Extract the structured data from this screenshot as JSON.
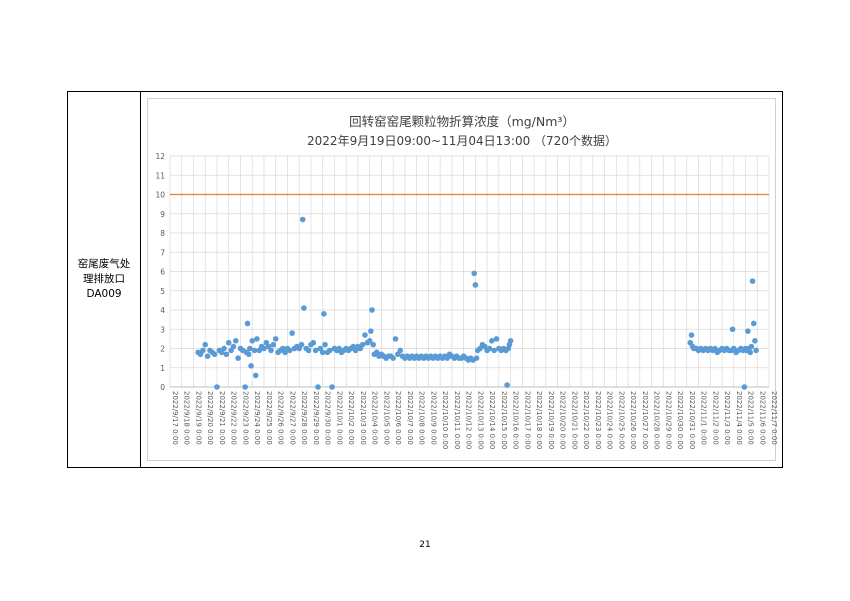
{
  "table": {
    "label_line1": "窑尾废气处",
    "label_line2": "理排放口",
    "label_line3": "DA009"
  },
  "page": {
    "number": "21"
  },
  "colors": {
    "points": "#5b9bd5",
    "limit_line": "#ed7d31",
    "grid": "#d9d9d9",
    "axis_text": "#595959"
  },
  "chart_data": {
    "type": "scatter",
    "title": "回转窑窑尾颗粒物折算浓度（mg/Nm³）",
    "subtitle": "2022年9月19日09:00~11月04日13:00 （720个数据）",
    "xlabel": "",
    "ylabel": "",
    "ylim": [
      0,
      12
    ],
    "xlim": [
      "2022/9/17 0:00",
      "2022/11/7 0:00"
    ],
    "yticks": [
      "0",
      "1",
      "2",
      "3",
      "4",
      "5",
      "6",
      "7",
      "8",
      "9",
      "10",
      "11",
      "12"
    ],
    "xticks": [
      "2022/9/17 0:00",
      "2022/9/18 0:00",
      "2022/9/19 0:00",
      "2022/9/20 0:00",
      "2022/9/21 0:00",
      "2022/9/22 0:00",
      "2022/9/23 0:00",
      "2022/9/24 0:00",
      "2022/9/25 0:00",
      "2022/9/26 0:00",
      "2022/9/27 0:00",
      "2022/9/28 0:00",
      "2022/9/29 0:00",
      "2022/9/30 0:00",
      "2022/10/1 0:00",
      "2022/10/2 0:00",
      "2022/10/3 0:00",
      "2022/10/4 0:00",
      "2022/10/5 0:00",
      "2022/10/6 0:00",
      "2022/10/7 0:00",
      "2022/10/8 0:00",
      "2022/10/9 0:00",
      "2022/10/10 0:00",
      "2022/10/11 0:00",
      "2022/10/12 0:00",
      "2022/10/13 0:00",
      "2022/10/14 0:00",
      "2022/10/15 0:00",
      "2022/10/16 0:00",
      "2022/10/17 0:00",
      "2022/10/18 0:00",
      "2022/10/19 0:00",
      "2022/10/20 0:00",
      "2022/10/21 0:00",
      "2022/10/22 0:00",
      "2022/10/23 0:00",
      "2022/10/24 0:00",
      "2022/10/25 0:00",
      "2022/10/26 0:00",
      "2022/10/27 0:00",
      "2022/10/28 0:00",
      "2022/10/29 0:00",
      "2022/10/30 0:00",
      "2022/10/31 0:00",
      "2022/11/1 0:00",
      "2022/11/2 0:00",
      "2022/11/3 0:00",
      "2022/11/4 0:00",
      "2022/11/5 0:00",
      "2022/11/6 0:00",
      "2022/11/7 0:00"
    ],
    "grid": true,
    "legend": "none",
    "series": [
      {
        "type": "line",
        "values": [
          [
            0,
            10
          ],
          [
            51,
            10
          ]
        ]
      },
      {
        "type": "scatter",
        "values": [
          [
            2.4,
            1.8
          ],
          [
            2.6,
            1.7
          ],
          [
            2.8,
            1.9
          ],
          [
            3.0,
            2.2
          ],
          [
            3.2,
            1.6
          ],
          [
            3.4,
            1.9
          ],
          [
            3.6,
            1.8
          ],
          [
            3.8,
            1.7
          ],
          [
            4.0,
            0
          ],
          [
            4.2,
            1.9
          ],
          [
            4.4,
            1.8
          ],
          [
            4.6,
            2.0
          ],
          [
            4.8,
            1.7
          ],
          [
            5.0,
            2.3
          ],
          [
            5.2,
            1.9
          ],
          [
            5.4,
            2.1
          ],
          [
            5.6,
            2.4
          ],
          [
            5.8,
            1.5
          ],
          [
            6.0,
            2.0
          ],
          [
            6.2,
            1.9
          ],
          [
            6.4,
            0
          ],
          [
            6.5,
            1.8
          ],
          [
            6.6,
            3.3
          ],
          [
            6.7,
            1.7
          ],
          [
            6.8,
            2.0
          ],
          [
            6.9,
            1.1
          ],
          [
            7.0,
            2.4
          ],
          [
            7.2,
            1.9
          ],
          [
            7.3,
            0.6
          ],
          [
            7.4,
            2.5
          ],
          [
            7.6,
            1.9
          ],
          [
            7.8,
            2.1
          ],
          [
            8.0,
            2.0
          ],
          [
            8.2,
            2.3
          ],
          [
            8.4,
            2.1
          ],
          [
            8.6,
            1.9
          ],
          [
            8.8,
            2.2
          ],
          [
            9.0,
            2.5
          ],
          [
            9.2,
            1.8
          ],
          [
            9.4,
            1.9
          ],
          [
            9.6,
            2.0
          ],
          [
            9.8,
            1.8
          ],
          [
            10.0,
            2.0
          ],
          [
            10.2,
            1.9
          ],
          [
            10.4,
            2.8
          ],
          [
            10.6,
            2.0
          ],
          [
            10.8,
            2.1
          ],
          [
            11.0,
            2.0
          ],
          [
            11.2,
            2.2
          ],
          [
            11.3,
            8.7
          ],
          [
            11.4,
            4.1
          ],
          [
            11.6,
            2.0
          ],
          [
            11.8,
            1.9
          ],
          [
            12.0,
            2.2
          ],
          [
            12.2,
            2.3
          ],
          [
            12.4,
            1.9
          ],
          [
            12.6,
            0
          ],
          [
            12.8,
            2.0
          ],
          [
            13.0,
            1.8
          ],
          [
            13.1,
            3.8
          ],
          [
            13.2,
            2.2
          ],
          [
            13.4,
            1.8
          ],
          [
            13.6,
            1.9
          ],
          [
            13.8,
            0
          ],
          [
            14.0,
            2.0
          ],
          [
            14.2,
            1.9
          ],
          [
            14.4,
            2.0
          ],
          [
            14.6,
            1.8
          ],
          [
            14.8,
            1.9
          ],
          [
            15.0,
            2.0
          ],
          [
            15.2,
            1.9
          ],
          [
            15.4,
            2.0
          ],
          [
            15.6,
            2.1
          ],
          [
            15.8,
            1.9
          ],
          [
            16.0,
            2.1
          ],
          [
            16.2,
            2.0
          ],
          [
            16.4,
            2.2
          ],
          [
            16.6,
            2.7
          ],
          [
            16.8,
            2.3
          ],
          [
            17.0,
            2.4
          ],
          [
            17.1,
            2.9
          ],
          [
            17.2,
            4.0
          ],
          [
            17.3,
            2.2
          ],
          [
            17.4,
            1.7
          ],
          [
            17.6,
            1.8
          ],
          [
            17.8,
            1.6
          ],
          [
            18.0,
            1.7
          ],
          [
            18.2,
            1.6
          ],
          [
            18.4,
            1.5
          ],
          [
            18.6,
            1.6
          ],
          [
            18.8,
            1.6
          ],
          [
            19.0,
            1.5
          ],
          [
            19.2,
            2.5
          ],
          [
            19.4,
            1.7
          ],
          [
            19.6,
            1.9
          ],
          [
            19.8,
            1.6
          ],
          [
            20.0,
            1.5
          ],
          [
            20.2,
            1.6
          ],
          [
            20.4,
            1.5
          ],
          [
            20.6,
            1.6
          ],
          [
            20.8,
            1.5
          ],
          [
            21.0,
            1.6
          ],
          [
            21.2,
            1.5
          ],
          [
            21.4,
            1.6
          ],
          [
            21.6,
            1.5
          ],
          [
            21.8,
            1.6
          ],
          [
            22.0,
            1.5
          ],
          [
            22.2,
            1.6
          ],
          [
            22.4,
            1.5
          ],
          [
            22.6,
            1.6
          ],
          [
            22.8,
            1.5
          ],
          [
            23.0,
            1.6
          ],
          [
            23.2,
            1.5
          ],
          [
            23.4,
            1.6
          ],
          [
            23.6,
            1.5
          ],
          [
            23.8,
            1.7
          ],
          [
            24.0,
            1.6
          ],
          [
            24.2,
            1.5
          ],
          [
            24.4,
            1.6
          ],
          [
            24.6,
            1.5
          ],
          [
            24.8,
            1.5
          ],
          [
            25.0,
            1.6
          ],
          [
            25.2,
            1.5
          ],
          [
            25.4,
            1.4
          ],
          [
            25.6,
            1.5
          ],
          [
            25.8,
            1.4
          ],
          [
            25.9,
            5.9
          ],
          [
            26.0,
            5.3
          ],
          [
            26.1,
            1.5
          ],
          [
            26.2,
            1.9
          ],
          [
            26.4,
            2.0
          ],
          [
            26.6,
            2.2
          ],
          [
            26.8,
            2.1
          ],
          [
            27.0,
            1.9
          ],
          [
            27.2,
            2.0
          ],
          [
            27.4,
            2.4
          ],
          [
            27.6,
            1.9
          ],
          [
            27.8,
            2.5
          ],
          [
            28.0,
            2.0
          ],
          [
            28.2,
            1.9
          ],
          [
            28.4,
            2.0
          ],
          [
            28.6,
            1.9
          ],
          [
            28.7,
            0.1
          ],
          [
            28.8,
            2.0
          ],
          [
            28.9,
            2.2
          ],
          [
            29.0,
            2.4
          ],
          [
            44.3,
            2.3
          ],
          [
            44.4,
            2.7
          ],
          [
            44.5,
            2.1
          ],
          [
            44.6,
            2.0
          ],
          [
            44.8,
            2.0
          ],
          [
            45.0,
            1.9
          ],
          [
            45.2,
            2.0
          ],
          [
            45.4,
            1.9
          ],
          [
            45.6,
            2.0
          ],
          [
            45.8,
            1.9
          ],
          [
            46.0,
            2.0
          ],
          [
            46.2,
            1.9
          ],
          [
            46.4,
            2.0
          ],
          [
            46.6,
            1.8
          ],
          [
            46.8,
            1.9
          ],
          [
            47.0,
            2.0
          ],
          [
            47.2,
            1.9
          ],
          [
            47.4,
            2.0
          ],
          [
            47.6,
            1.9
          ],
          [
            47.8,
            1.9
          ],
          [
            47.9,
            3.0
          ],
          [
            48.0,
            2.0
          ],
          [
            48.2,
            1.8
          ],
          [
            48.4,
            1.9
          ],
          [
            48.6,
            2.0
          ],
          [
            48.8,
            1.9
          ],
          [
            48.9,
            0
          ],
          [
            49.0,
            2.0
          ],
          [
            49.1,
            1.9
          ],
          [
            49.2,
            2.9
          ],
          [
            49.3,
            2.0
          ],
          [
            49.4,
            1.8
          ],
          [
            49.5,
            2.1
          ],
          [
            49.6,
            5.5
          ],
          [
            49.7,
            3.3
          ],
          [
            49.8,
            2.4
          ],
          [
            49.9,
            1.9
          ]
        ]
      }
    ]
  }
}
